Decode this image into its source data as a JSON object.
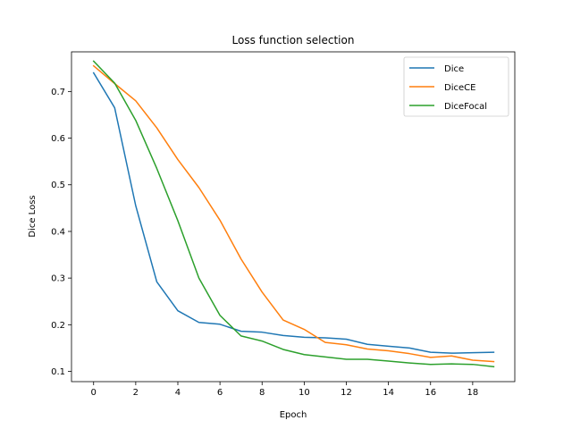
{
  "chart_data": {
    "type": "line",
    "title": "Loss function selection",
    "xlabel": "Epoch",
    "ylabel": "Dice Loss",
    "xlim": [
      -1.05,
      20.0
    ],
    "ylim": [
      0.078,
      0.785
    ],
    "xticks": [
      0,
      2,
      4,
      6,
      8,
      10,
      12,
      14,
      16,
      18
    ],
    "yticks": [
      0.1,
      0.2,
      0.3,
      0.4,
      0.5,
      0.6,
      0.7
    ],
    "legend_position": "top-right",
    "grid": false,
    "x": [
      0,
      1,
      2,
      3,
      4,
      5,
      6,
      7,
      8,
      9,
      10,
      11,
      12,
      13,
      14,
      15,
      16,
      17,
      18,
      19
    ],
    "series": [
      {
        "name": "Dice",
        "color": "#1f77b4",
        "values": [
          0.74,
          0.665,
          0.455,
          0.292,
          0.23,
          0.205,
          0.201,
          0.186,
          0.184,
          0.177,
          0.173,
          0.172,
          0.169,
          0.158,
          0.154,
          0.15,
          0.141,
          0.139,
          0.14,
          0.141
        ]
      },
      {
        "name": "DiceCE",
        "color": "#ff7f0e",
        "values": [
          0.755,
          0.717,
          0.68,
          0.622,
          0.554,
          0.494,
          0.424,
          0.341,
          0.27,
          0.21,
          0.19,
          0.162,
          0.157,
          0.148,
          0.144,
          0.138,
          0.13,
          0.133,
          0.124,
          0.121
        ]
      },
      {
        "name": "DiceFocal",
        "color": "#2ca02c",
        "values": [
          0.765,
          0.718,
          0.638,
          0.535,
          0.423,
          0.3,
          0.22,
          0.176,
          0.165,
          0.147,
          0.136,
          0.131,
          0.126,
          0.126,
          0.122,
          0.118,
          0.115,
          0.116,
          0.115,
          0.11
        ]
      }
    ]
  }
}
